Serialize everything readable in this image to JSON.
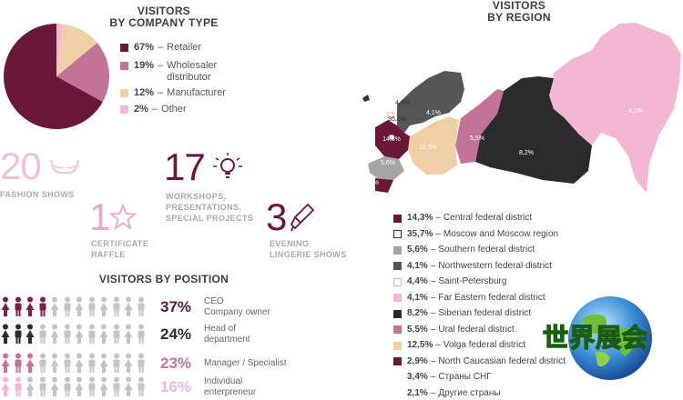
{
  "company": {
    "title": "VISITORS\nBY COMPANY TYPE",
    "items": [
      {
        "pct": "67%",
        "label": "Retailer",
        "color": "#6a1838"
      },
      {
        "pct": "19%",
        "label": "Wholesaler\ndistributor",
        "color": "#c37298"
      },
      {
        "pct": "12%",
        "label": "Manufacturer",
        "color": "#f0cfa4"
      },
      {
        "pct": "2%",
        "label": "Other",
        "color": "#f4b7d1"
      }
    ]
  },
  "stats": {
    "fashion_num": "20",
    "fashion_label": "FASHION SHOWS",
    "workshops_num": "17",
    "workshops_label": "WORKSHOPS,\nPRESENTATIONS,\nSPECIAL PROJECTS",
    "certificate_num": "1",
    "certificate_label": "CERTIFICATE\nRAFFLE",
    "evening_num": "3",
    "evening_label": "EVENING\nLINGERIE SHOWS"
  },
  "position": {
    "title": "VISITORS BY POSITION",
    "rows": [
      {
        "pct": "37%",
        "label": "CEO\nCompany owner",
        "filled": 4,
        "color": "#7a2045"
      },
      {
        "pct": "24%",
        "label": "Head of\ndepartment",
        "filled": 3,
        "color": "#2e2e2e"
      },
      {
        "pct": "23%",
        "label": "Manager / Specialist",
        "filled": 3,
        "color": "#c37298"
      },
      {
        "pct": "16%",
        "label": "Individual\nenterpreneur",
        "filled": 2,
        "color": "#f4b7d1"
      }
    ],
    "pct_colors": [
      "#5b1a36",
      "#2e2e2e",
      "#c37298",
      "#f4b7d1"
    ]
  },
  "region": {
    "title": "VISITORS\nBY REGION",
    "map_labels": [
      "4,4%",
      "4,1%",
      "35,7%",
      "14,3%",
      "12,5%",
      "5,5%",
      "8,2%",
      "4,1%",
      "5,6%",
      "2,9%"
    ],
    "items": [
      {
        "pct": "14,3%",
        "label": "Central federal district",
        "color": "#6a1838",
        "outline": false
      },
      {
        "pct": "35,7%",
        "label": "Moscow and Moscow region",
        "color": "#ffffff",
        "outline": true,
        "ocolor": "#6a1838"
      },
      {
        "pct": "5,6%",
        "label": "Southern federal district",
        "color": "#a5a5a5",
        "outline": false
      },
      {
        "pct": "4,1%",
        "label": "Northwestern federal district",
        "color": "#555555",
        "outline": false
      },
      {
        "pct": "4,4%",
        "label": "Saint-Petersburg",
        "color": "#ffffff",
        "outline": true,
        "ocolor": "#e8b98a"
      },
      {
        "pct": "4,1%",
        "label": "Far Eastern federal district",
        "color": "#f4b7d1",
        "outline": false
      },
      {
        "pct": "8,2%",
        "label": "Siberian federal district",
        "color": "#2b2b2b",
        "outline": false
      },
      {
        "pct": "5,5%",
        "label": "Ural federal district",
        "color": "#c37298",
        "outline": false
      },
      {
        "pct": "12,5%",
        "label": "Volga federal district",
        "color": "#f0cfa4",
        "outline": false
      },
      {
        "pct": "2,9%",
        "label": "North Caucasian federal district",
        "color": "#6a1838",
        "outline": false
      },
      {
        "pct": "3,4%",
        "label": "Страны СНГ",
        "color": "",
        "outline": false
      },
      {
        "pct": "2,1%",
        "label": "Другие страны",
        "color": "",
        "outline": false
      }
    ]
  },
  "watermark": {
    "text": "世界展会"
  },
  "chart_data": [
    {
      "type": "pie",
      "title": "VISITORS BY COMPANY TYPE",
      "categories": [
        "Retailer",
        "Wholesaler distributor",
        "Manufacturer",
        "Other"
      ],
      "values": [
        67,
        19,
        12,
        2
      ],
      "legend": "right"
    },
    {
      "type": "bar",
      "title": "VISITORS BY POSITION",
      "categories": [
        "CEO Company owner",
        "Head of department",
        "Manager / Specialist",
        "Individual enterpreneur"
      ],
      "values": [
        37,
        24,
        23,
        16
      ]
    },
    {
      "type": "table",
      "title": "VISITORS BY REGION",
      "categories": [
        "Central federal district",
        "Moscow and Moscow region",
        "Southern federal district",
        "Northwestern federal district",
        "Saint-Petersburg",
        "Far Eastern federal district",
        "Siberian federal district",
        "Ural federal district",
        "Volga federal district",
        "North Caucasian federal district",
        "Страны СНГ",
        "Другие страны"
      ],
      "values": [
        14.3,
        35.7,
        5.6,
        4.1,
        4.4,
        4.1,
        8.2,
        5.5,
        12.5,
        2.9,
        3.4,
        2.1
      ]
    }
  ]
}
